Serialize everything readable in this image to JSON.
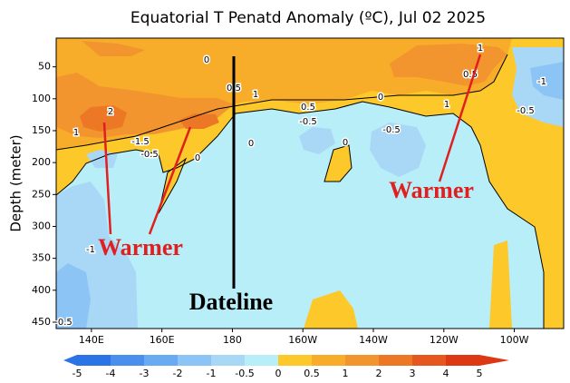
{
  "chart_data": {
    "type": "contour",
    "title": "Equatorial T Penatd Anomaly (ºC), Jul 02 2025",
    "y_label": "Depth (meter)",
    "xlim": [
      130,
      274
    ],
    "xticks": [
      {
        "value": 140,
        "label": "140E"
      },
      {
        "value": 160,
        "label": "160E"
      },
      {
        "value": 180,
        "label": "180"
      },
      {
        "value": 200,
        "label": "160W"
      },
      {
        "value": 220,
        "label": "140W"
      },
      {
        "value": 240,
        "label": "120W"
      },
      {
        "value": 260,
        "label": "100W"
      }
    ],
    "ylim": [
      5,
      460
    ],
    "y_inverted": true,
    "yticks": [
      50,
      100,
      150,
      200,
      250,
      300,
      350,
      400,
      450
    ],
    "colorbar": {
      "levels": [
        -5,
        -4,
        -3,
        -2,
        -1,
        -0.5,
        0,
        0.5,
        1,
        2,
        3,
        4,
        5
      ],
      "colors": [
        "#2a74e6",
        "#4a8fee",
        "#6aaaf2",
        "#8cc4f5",
        "#a9d8f6",
        "#b8eef8",
        "#fcc82a",
        "#f8ad2a",
        "#f2952e",
        "#ec7826",
        "#e5571e",
        "#dc3814"
      ]
    },
    "contour_labels": [
      1,
      0,
      0.5,
      1,
      0,
      0.5,
      -0.5,
      2,
      1,
      -1.5,
      -0.5,
      0,
      0,
      0,
      -0.5,
      1,
      0.5,
      -1,
      -0.5,
      -1,
      -0.5
    ],
    "annotations": [
      "Warmer",
      "Warmer",
      "Dateline"
    ]
  }
}
